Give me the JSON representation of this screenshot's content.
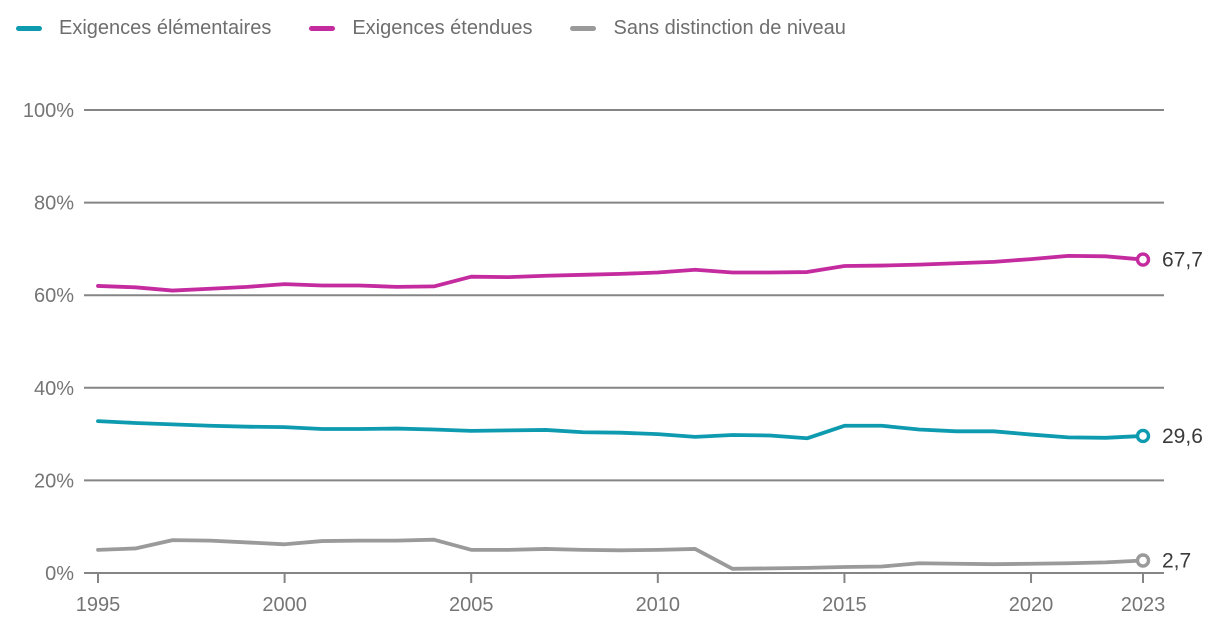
{
  "chart_data": {
    "type": "line",
    "title": "",
    "xlabel": "",
    "ylabel": "",
    "x": [
      1995,
      1996,
      1997,
      1998,
      1999,
      2000,
      2001,
      2002,
      2003,
      2004,
      2005,
      2006,
      2007,
      2008,
      2009,
      2010,
      2011,
      2012,
      2013,
      2014,
      2015,
      2016,
      2017,
      2018,
      2019,
      2020,
      2021,
      2022,
      2023
    ],
    "series": [
      {
        "name": "Exigences élémentaires",
        "color": "#0e9bb0",
        "end_label": "29,6",
        "values": [
          32.8,
          32.4,
          32.1,
          31.8,
          31.6,
          31.5,
          31.1,
          31.1,
          31.2,
          31.0,
          30.7,
          30.8,
          30.9,
          30.4,
          30.3,
          30.0,
          29.4,
          29.8,
          29.7,
          29.1,
          31.8,
          31.8,
          31.0,
          30.6,
          30.6,
          29.9,
          29.3,
          29.2,
          29.6
        ]
      },
      {
        "name": "Exigences étendues",
        "color": "#c42b9f",
        "end_label": "67,7",
        "values": [
          62.0,
          61.7,
          61.0,
          61.4,
          61.8,
          62.4,
          62.1,
          62.1,
          61.8,
          61.9,
          64.0,
          63.9,
          64.2,
          64.4,
          64.6,
          64.9,
          65.5,
          64.9,
          64.9,
          65.0,
          66.3,
          66.4,
          66.6,
          66.9,
          67.2,
          67.8,
          68.5,
          68.4,
          67.7
        ]
      },
      {
        "name": "Sans distinction de niveau",
        "color": "#9a9a9a",
        "end_label": "2,7",
        "values": [
          5.0,
          5.3,
          7.1,
          7.0,
          6.6,
          6.2,
          6.9,
          7.0,
          7.0,
          7.2,
          5.0,
          5.0,
          5.2,
          5.0,
          4.9,
          5.0,
          5.2,
          0.9,
          1.0,
          1.1,
          1.3,
          1.4,
          2.1,
          2.0,
          1.9,
          2.0,
          2.1,
          2.3,
          2.7
        ]
      }
    ],
    "ylim": [
      0,
      100
    ],
    "y_ticks": [
      {
        "value": 100,
        "label": "100%"
      },
      {
        "value": 80,
        "label": "80%"
      },
      {
        "value": 60,
        "label": "60%"
      },
      {
        "value": 40,
        "label": "40%"
      },
      {
        "value": 20,
        "label": "20%"
      },
      {
        "value": 0,
        "label": "0%"
      }
    ],
    "x_ticks": [
      1995,
      2000,
      2005,
      2010,
      2015,
      2020,
      2023
    ],
    "grid": true,
    "legend_position": "top-left",
    "styles": {
      "grid_color": "#858585",
      "axis_label_color": "#757575",
      "end_label_color": "#3a3a3a",
      "background": "#ffffff"
    }
  },
  "legend": {
    "items": [
      {
        "label": "Exigences élémentaires"
      },
      {
        "label": "Exigences étendues"
      },
      {
        "label": "Sans distinction de niveau"
      }
    ]
  }
}
